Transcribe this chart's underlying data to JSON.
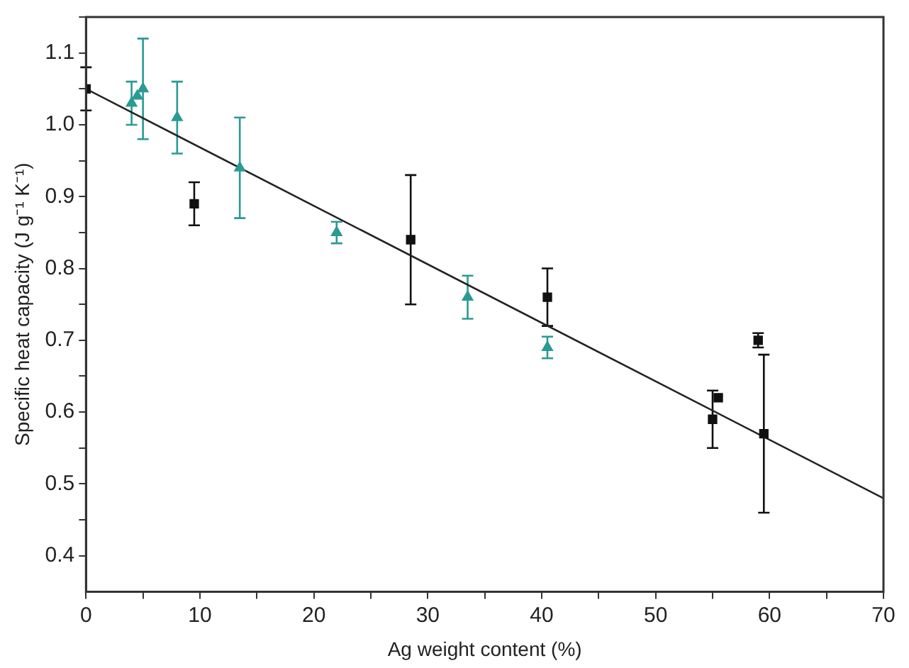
{
  "chart_data": {
    "type": "scatter",
    "xlabel": "Ag weight content (%)",
    "ylabel": "Specific heat capacity (J g⁻¹ K⁻¹)",
    "xlim": [
      0,
      70
    ],
    "ylim": [
      0.35,
      1.15
    ],
    "xticks": [
      0,
      {
        "value": 5,
        "label": null
      },
      10,
      {
        "value": 15,
        "label": null
      },
      20,
      {
        "value": 25,
        "label": null
      },
      30,
      {
        "value": 35,
        "label": null
      },
      40,
      {
        "value": 45,
        "label": null
      },
      50,
      {
        "value": 55,
        "label": null
      },
      60,
      {
        "value": 65,
        "label": null
      },
      70
    ],
    "yticks": [
      {
        "value": 0.4,
        "label": "0.4"
      },
      {
        "value": 0.45,
        "label": null
      },
      {
        "value": 0.5,
        "label": "0.5"
      },
      {
        "value": 0.55,
        "label": null
      },
      {
        "value": 0.6,
        "label": "0.6"
      },
      {
        "value": 0.65,
        "label": null
      },
      {
        "value": 0.7,
        "label": "0.7"
      },
      {
        "value": 0.75,
        "label": null
      },
      {
        "value": 0.8,
        "label": "0.8"
      },
      {
        "value": 0.85,
        "label": null
      },
      {
        "value": 0.9,
        "label": "0.9"
      },
      {
        "value": 0.95,
        "label": null
      },
      {
        "value": 1.0,
        "label": "1.0"
      },
      {
        "value": 1.05,
        "label": null
      },
      {
        "value": 1.1,
        "label": "1.1"
      },
      {
        "value": 1.15,
        "label": null
      }
    ],
    "grid": false,
    "legend": false,
    "series": [
      {
        "marker": "square",
        "color": "#111111",
        "x": [
          0,
          9.5,
          28.5,
          40.5,
          55,
          55.5,
          59,
          59.5
        ],
        "values": [
          1.05,
          0.89,
          0.84,
          0.76,
          0.59,
          0.62,
          0.7,
          0.57
        ],
        "errors": [
          0.03,
          0.03,
          0.09,
          0.04,
          0.04,
          null,
          0.01,
          0.11
        ]
      },
      {
        "marker": "triangle",
        "color": "#2a9a94",
        "x": [
          4,
          4.5,
          5,
          8,
          13.5,
          22,
          33.5,
          40.5
        ],
        "values": [
          1.03,
          1.04,
          1.05,
          1.01,
          0.94,
          0.85,
          0.76,
          0.69
        ],
        "errors": [
          0.03,
          null,
          0.07,
          0.05,
          0.07,
          0.015,
          0.03,
          0.015
        ]
      },
      {
        "type": "line",
        "color": "#222222",
        "x": [
          0,
          70
        ],
        "values": [
          1.05,
          0.48
        ],
        "marker": "none",
        "line_style": "solid"
      }
    ]
  }
}
